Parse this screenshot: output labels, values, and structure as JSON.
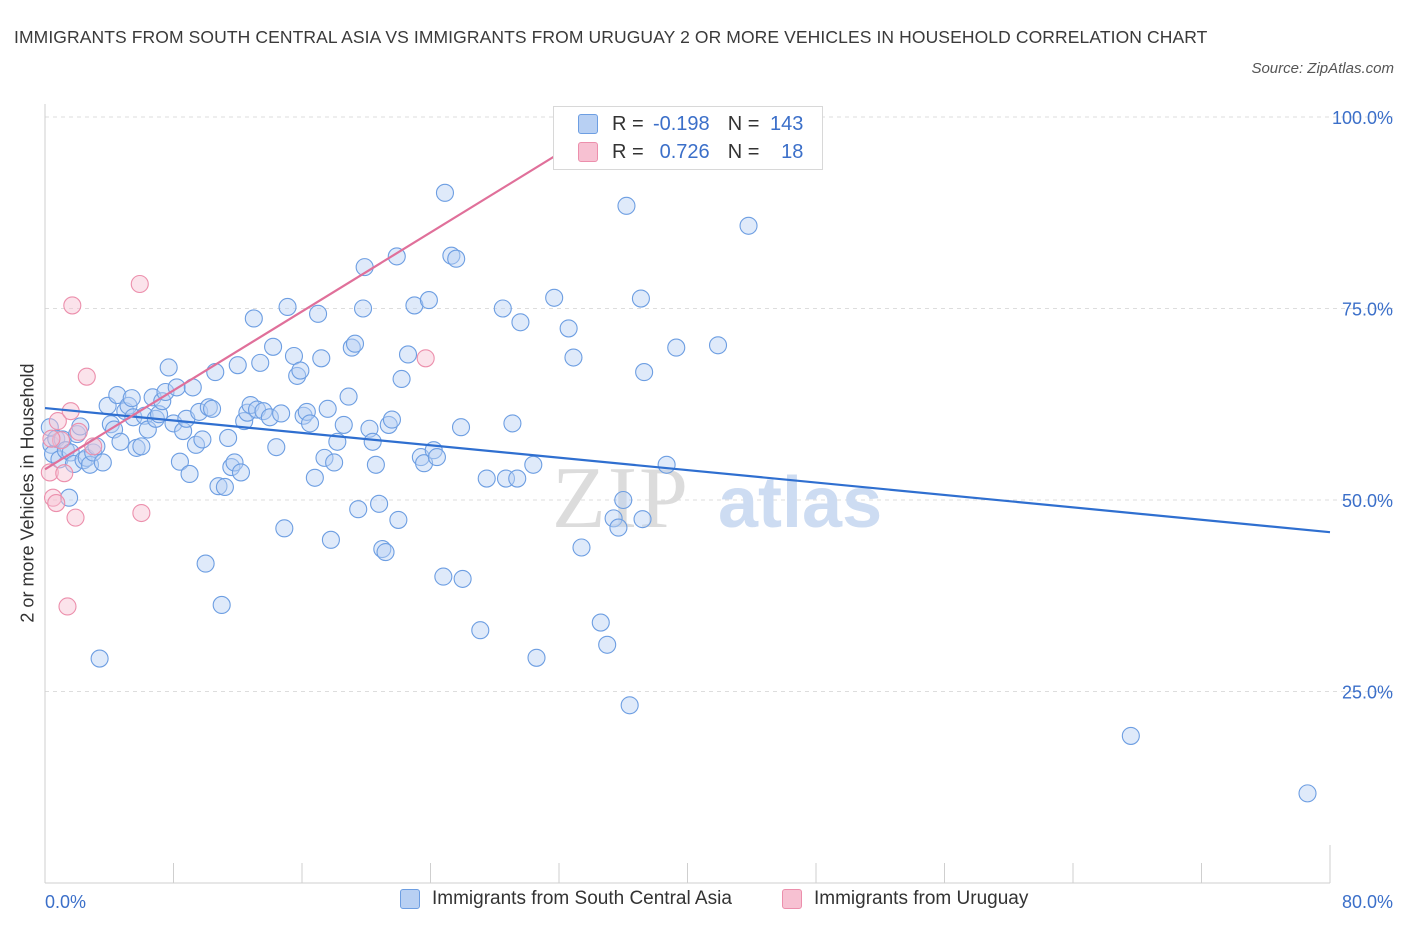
{
  "title": "IMMIGRANTS FROM SOUTH CENTRAL ASIA VS IMMIGRANTS FROM URUGUAY 2 OR MORE VEHICLES IN HOUSEHOLD CORRELATION CHART",
  "source": "Source: ZipAtlas.com",
  "watermark": {
    "zip": "ZIP",
    "atlas": "atlas"
  },
  "colors": {
    "blue_fill": "#b8d0f3",
    "blue_stroke": "#6d9ee2",
    "blue_line": "#2f6fd0",
    "pink_fill": "#f7c1d2",
    "pink_stroke": "#ec8fac",
    "pink_line": "#e0709a",
    "axis_text": "#3b6fc9",
    "grid": "#dddddd"
  },
  "legend": {
    "rows": [
      {
        "r_label": "R =",
        "r_value": "-0.198",
        "n_label": "N =",
        "n_value": "143",
        "color": "blue"
      },
      {
        "r_label": "R =",
        "r_value": "0.726",
        "n_label": "N =",
        "n_value": "18",
        "color": "pink"
      }
    ]
  },
  "bottom_legend": [
    "Immigrants from South Central Asia",
    "Immigrants from Uruguay"
  ],
  "chart_data": {
    "type": "scatter",
    "title": "IMMIGRANTS FROM SOUTH CENTRAL ASIA VS IMMIGRANTS FROM URUGUAY 2 OR MORE VEHICLES IN HOUSEHOLD CORRELATION CHART",
    "xlabel": "",
    "ylabel": "2 or more Vehicles in Household",
    "xlim": [
      0,
      80
    ],
    "ylim": [
      0,
      100
    ],
    "x_tick_labels": [
      "0.0%",
      "80.0%"
    ],
    "y_tick_labels": [
      "25.0%",
      "50.0%",
      "75.0%",
      "100.0%"
    ],
    "y_ticks": [
      25,
      50,
      75,
      100
    ],
    "grid": true,
    "legend_position": "top-center",
    "series": [
      {
        "name": "Immigrants from South Central Asia",
        "color": "blue",
        "trend": {
          "x": [
            0,
            80
          ],
          "y": [
            62.0,
            45.8
          ]
        },
        "points": [
          [
            0.3,
            59.5
          ],
          [
            0.4,
            57.2
          ],
          [
            0.5,
            56.0
          ],
          [
            0.7,
            58.0
          ],
          [
            0.9,
            55.3
          ],
          [
            1.1,
            57.9
          ],
          [
            1.3,
            56.5
          ],
          [
            1.5,
            50.3
          ],
          [
            1.6,
            56.2
          ],
          [
            1.8,
            54.7
          ],
          [
            2.0,
            58.6
          ],
          [
            2.2,
            59.6
          ],
          [
            2.4,
            55.2
          ],
          [
            2.6,
            55.5
          ],
          [
            2.8,
            54.6
          ],
          [
            3.0,
            56.2
          ],
          [
            3.2,
            57.0
          ],
          [
            3.4,
            29.3
          ],
          [
            3.6,
            54.9
          ],
          [
            3.9,
            62.3
          ],
          [
            4.1,
            59.9
          ],
          [
            4.3,
            59.2
          ],
          [
            4.5,
            63.7
          ],
          [
            4.7,
            57.6
          ],
          [
            5.0,
            61.6
          ],
          [
            5.2,
            62.3
          ],
          [
            5.4,
            63.3
          ],
          [
            5.5,
            60.8
          ],
          [
            5.7,
            56.8
          ],
          [
            6.0,
            57.0
          ],
          [
            6.2,
            61.0
          ],
          [
            6.4,
            59.2
          ],
          [
            6.7,
            63.4
          ],
          [
            6.9,
            60.6
          ],
          [
            7.1,
            61.2
          ],
          [
            7.3,
            62.9
          ],
          [
            7.5,
            64.1
          ],
          [
            7.7,
            67.3
          ],
          [
            8.0,
            60.0
          ],
          [
            8.2,
            64.7
          ],
          [
            8.4,
            55.0
          ],
          [
            8.6,
            59.0
          ],
          [
            8.8,
            60.6
          ],
          [
            9.0,
            53.4
          ],
          [
            9.2,
            64.7
          ],
          [
            9.4,
            57.2
          ],
          [
            9.6,
            61.5
          ],
          [
            9.8,
            57.9
          ],
          [
            10.0,
            41.7
          ],
          [
            10.2,
            62.1
          ],
          [
            10.4,
            61.9
          ],
          [
            10.6,
            66.7
          ],
          [
            10.8,
            51.8
          ],
          [
            11.0,
            36.3
          ],
          [
            11.2,
            51.7
          ],
          [
            11.4,
            58.1
          ],
          [
            11.6,
            54.3
          ],
          [
            11.8,
            54.9
          ],
          [
            12.0,
            67.6
          ],
          [
            12.2,
            53.6
          ],
          [
            12.4,
            60.3
          ],
          [
            12.6,
            61.4
          ],
          [
            12.8,
            62.4
          ],
          [
            13.0,
            73.7
          ],
          [
            13.2,
            61.8
          ],
          [
            13.4,
            67.9
          ],
          [
            13.6,
            61.6
          ],
          [
            14.0,
            60.8
          ],
          [
            14.2,
            70.0
          ],
          [
            14.4,
            56.9
          ],
          [
            14.7,
            61.3
          ],
          [
            14.9,
            46.3
          ],
          [
            15.1,
            75.2
          ],
          [
            15.5,
            68.8
          ],
          [
            15.7,
            66.2
          ],
          [
            15.9,
            66.9
          ],
          [
            16.1,
            61.0
          ],
          [
            16.3,
            61.5
          ],
          [
            16.5,
            60.0
          ],
          [
            16.8,
            52.9
          ],
          [
            17.0,
            74.3
          ],
          [
            17.2,
            68.5
          ],
          [
            17.4,
            55.5
          ],
          [
            17.6,
            61.9
          ],
          [
            17.8,
            44.8
          ],
          [
            18.0,
            54.9
          ],
          [
            18.2,
            57.6
          ],
          [
            18.6,
            59.8
          ],
          [
            18.9,
            63.5
          ],
          [
            19.1,
            69.9
          ],
          [
            19.3,
            70.4
          ],
          [
            19.5,
            48.8
          ],
          [
            19.8,
            75.0
          ],
          [
            19.9,
            80.4
          ],
          [
            20.2,
            59.3
          ],
          [
            20.4,
            57.6
          ],
          [
            20.6,
            54.6
          ],
          [
            20.8,
            49.5
          ],
          [
            21.0,
            43.6
          ],
          [
            21.2,
            43.2
          ],
          [
            21.4,
            59.8
          ],
          [
            21.6,
            60.5
          ],
          [
            21.9,
            81.8
          ],
          [
            22.0,
            47.4
          ],
          [
            22.2,
            65.8
          ],
          [
            22.6,
            69.0
          ],
          [
            23.0,
            75.4
          ],
          [
            23.4,
            55.6
          ],
          [
            23.6,
            54.8
          ],
          [
            23.9,
            76.1
          ],
          [
            24.2,
            56.5
          ],
          [
            24.4,
            55.6
          ],
          [
            24.8,
            40.0
          ],
          [
            24.9,
            90.1
          ],
          [
            25.3,
            81.9
          ],
          [
            25.6,
            81.5
          ],
          [
            25.9,
            59.5
          ],
          [
            26.0,
            39.7
          ],
          [
            27.1,
            33.0
          ],
          [
            27.5,
            52.8
          ],
          [
            28.5,
            75.0
          ],
          [
            28.7,
            52.8
          ],
          [
            29.1,
            60.0
          ],
          [
            29.4,
            52.8
          ],
          [
            29.6,
            73.2
          ],
          [
            30.4,
            54.6
          ],
          [
            30.6,
            29.4
          ],
          [
            31.7,
            76.4
          ],
          [
            32.6,
            72.4
          ],
          [
            32.9,
            68.6
          ],
          [
            33.4,
            43.8
          ],
          [
            34.6,
            34.0
          ],
          [
            35.0,
            31.1
          ],
          [
            35.4,
            47.6
          ],
          [
            35.7,
            46.4
          ],
          [
            36.0,
            50.0
          ],
          [
            36.2,
            88.4
          ],
          [
            36.4,
            23.2
          ],
          [
            37.1,
            76.3
          ],
          [
            37.2,
            47.5
          ],
          [
            37.3,
            66.7
          ],
          [
            38.7,
            54.6
          ],
          [
            39.3,
            69.9
          ],
          [
            41.9,
            70.2
          ],
          [
            43.8,
            85.8
          ],
          [
            67.6,
            19.2
          ],
          [
            78.6,
            11.7
          ]
        ]
      },
      {
        "name": "Immigrants from Uruguay",
        "color": "pink",
        "trend": {
          "x": [
            0,
            35.7
          ],
          "y": [
            54.0,
            100.0
          ]
        },
        "points": [
          [
            0.3,
            53.6
          ],
          [
            0.5,
            50.3
          ],
          [
            0.7,
            49.6
          ],
          [
            0.8,
            60.3
          ],
          [
            1.0,
            57.8
          ],
          [
            1.2,
            53.5
          ],
          [
            1.4,
            36.1
          ],
          [
            1.6,
            61.6
          ],
          [
            1.7,
            75.4
          ],
          [
            1.9,
            47.7
          ],
          [
            2.1,
            58.9
          ],
          [
            2.6,
            66.1
          ],
          [
            3.0,
            57.0
          ],
          [
            5.9,
            78.2
          ],
          [
            6.0,
            48.3
          ],
          [
            23.7,
            68.5
          ],
          [
            35.5,
            100.0
          ],
          [
            0.4,
            58.0
          ]
        ]
      }
    ]
  }
}
